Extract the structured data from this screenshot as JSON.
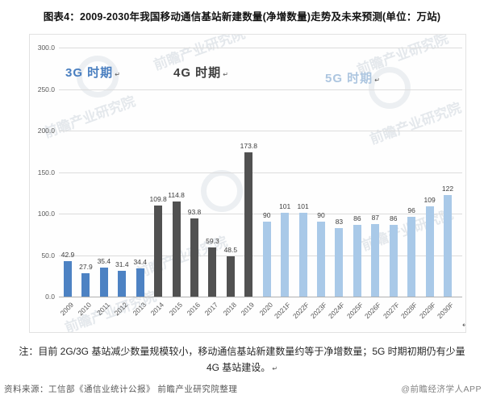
{
  "page": {
    "title": "图表4：2009-2030年我国移动通信基站新建数量(净增数量)走势及未来预测(单位：万站)"
  },
  "chart_data": {
    "type": "bar",
    "title": "2009-2030年我国移动通信基站新建数量(净增数量)走势及未来预测",
    "unit": "万站",
    "categories": [
      "2009",
      "2010",
      "2011",
      "2012",
      "2013",
      "2014",
      "2015",
      "2016",
      "2017",
      "2018",
      "2019",
      "2020",
      "2021F",
      "2022F",
      "2023F",
      "2024F",
      "2025F",
      "2026F",
      "2027F",
      "2028F",
      "2029F",
      "2030F"
    ],
    "values": [
      42.9,
      27.9,
      35.4,
      31.4,
      34.4,
      109.8,
      114.8,
      93.8,
      59.3,
      48.5,
      173.8,
      90,
      101,
      101,
      90,
      83,
      86,
      87,
      86,
      96,
      109,
      122
    ],
    "value_labels": [
      "42.9",
      "27.9",
      "35.4",
      "31.4",
      "34.4",
      "109.8",
      "114.8",
      "93.8",
      "59.3",
      "48.5",
      "173.8",
      "90",
      "101",
      "101",
      "90",
      "83",
      "86",
      "87",
      "86",
      "96",
      "109",
      "122"
    ],
    "era_index": [
      0,
      0,
      0,
      0,
      0,
      1,
      1,
      1,
      1,
      1,
      1,
      2,
      2,
      2,
      2,
      2,
      2,
      2,
      2,
      2,
      2,
      2
    ],
    "eras": [
      {
        "label": "3G 时期",
        "text_color": "#4a7fc0",
        "bar_color": "#4d82c3"
      },
      {
        "label": "4G 时期",
        "text_color": "#3f3f3f",
        "bar_color": "#515151"
      },
      {
        "label": "5G 时期",
        "text_color": "#adc6e0",
        "bar_color": "#a9c9e8"
      }
    ],
    "ylim": [
      0,
      300
    ],
    "yticks": [
      "300.0",
      "250.0",
      "200.0",
      "150.0",
      "100.0",
      "50.0",
      "0.0"
    ],
    "ytick_values": [
      300,
      250,
      200,
      150,
      100,
      50,
      0
    ],
    "grid": true,
    "legend": "none",
    "gridline_color": "#dcdcdc",
    "axis_line_color": "#b0b0b0"
  },
  "note": {
    "line1": "注：目前 2G/3G 基站减少数量规模较小，移动通信基站新建数量约等于净增数量；5G 时期初期仍有少量",
    "line2": "4G 基站建设。"
  },
  "footer": {
    "source": "资料来源：工信部《通信业统计公报》 前瞻产业研究院整理",
    "credit": "@前瞻经济学人APP"
  },
  "marks": {
    "return": "↵"
  },
  "watermark": {
    "text": "前瞻产业研究院"
  }
}
